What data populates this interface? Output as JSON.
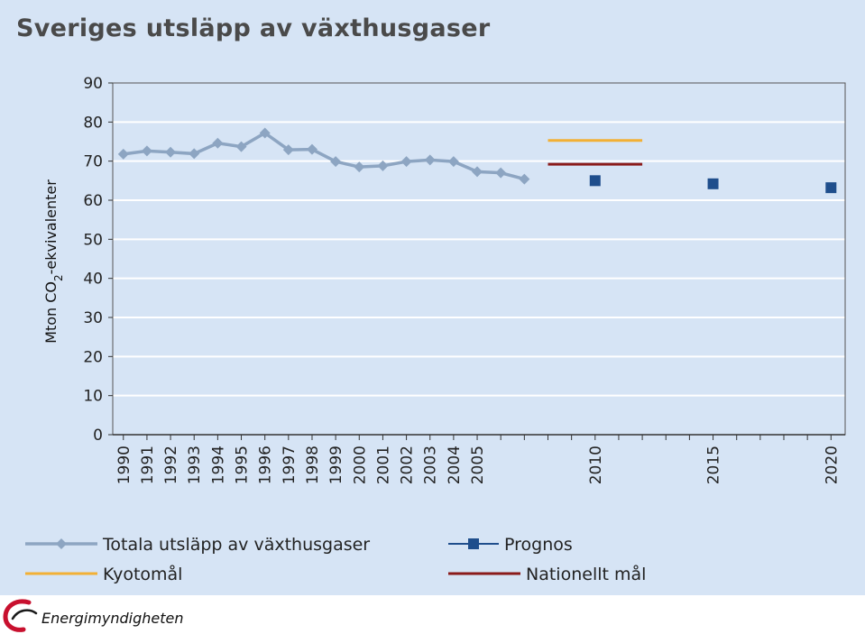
{
  "chart_data": {
    "type": "line",
    "title": "Sveriges utsläpp av växthusgaser",
    "ylabel_main": "Mton CO",
    "ylabel_sub": "2",
    "ylabel_rest": "-ekvivalenter",
    "ylim": [
      0,
      90
    ],
    "yticks": [
      0,
      10,
      20,
      30,
      40,
      50,
      60,
      70,
      80,
      90
    ],
    "xlim": [
      1990,
      2020
    ],
    "xtick_labels": [
      "1990",
      "1991",
      "1992",
      "1993",
      "1994",
      "1995",
      "1996",
      "1997",
      "1998",
      "1999",
      "2000",
      "2001",
      "2002",
      "2003",
      "2004",
      "2005",
      "2010",
      "2015",
      "2020"
    ],
    "grid": true,
    "legend_placement": "bottom",
    "series": [
      {
        "name": "Totala utsläpp av växthusgaser",
        "kind": "line-diamond",
        "color": "#8da5c2",
        "x": [
          1990,
          1991,
          1992,
          1993,
          1994,
          1995,
          1996,
          1997,
          1998,
          1999,
          2000,
          2001,
          2002,
          2003,
          2004,
          2005,
          2006,
          2007
        ],
        "values": [
          71.8,
          72.6,
          72.3,
          71.9,
          74.6,
          73.7,
          77.2,
          72.9,
          73.0,
          69.9,
          68.5,
          68.8,
          69.9,
          70.3,
          69.9,
          67.3,
          67.0,
          65.4
        ]
      },
      {
        "name": "Prognos",
        "kind": "square",
        "color": "#1f4e8c",
        "x": [
          2010,
          2015,
          2020
        ],
        "values": [
          65.0,
          64.2,
          63.2
        ]
      },
      {
        "name": "Kyotomål",
        "kind": "hline",
        "color": "#f2b035",
        "x": [
          2008,
          2012
        ],
        "values": [
          75.3,
          75.3
        ]
      },
      {
        "name": "Nationellt mål",
        "kind": "hline",
        "color": "#8b1a1a",
        "x": [
          2008,
          2012
        ],
        "values": [
          69.2,
          69.2
        ]
      }
    ]
  },
  "brand": {
    "name": "Energimyndigheten",
    "logo_icon": "energimyndigheten-logo-icon",
    "logo_color": "#c8102e"
  }
}
